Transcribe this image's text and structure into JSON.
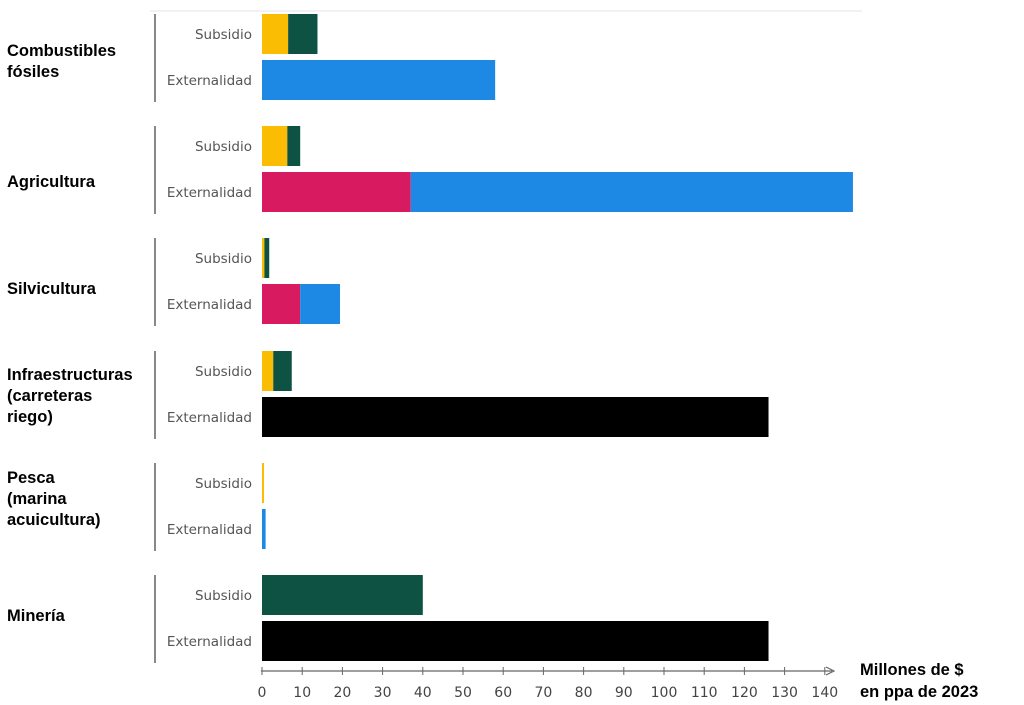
{
  "chart_data": {
    "type": "bar",
    "orientation": "horizontal",
    "stacked": true,
    "x_unit_label": "Millones de $\nen ppa de 2023",
    "xlim": [
      0,
      145
    ],
    "x_ticks": [
      "0",
      "10",
      "20",
      "30",
      "40",
      "50",
      "60",
      "70",
      "80",
      "90",
      "100",
      "110",
      "120",
      "130",
      "140"
    ],
    "row_labels": {
      "subsidy": "Subsidio",
      "externality": "Externalidad"
    },
    "grid": false,
    "legend": "none",
    "groups": [
      {
        "name": "Combustibles\nfósiles",
        "subsidy": [
          {
            "color": "#FBBC04",
            "value": 6.5
          },
          {
            "color": "#0D5242",
            "value": 7.3
          }
        ],
        "externality": [
          {
            "color": "#1E88E5",
            "value": 58
          }
        ]
      },
      {
        "name": "Agricultura",
        "subsidy": [
          {
            "color": "#FBBC04",
            "value": 6.3
          },
          {
            "color": "#0D5242",
            "value": 3.2
          }
        ],
        "externality": [
          {
            "color": "#D81B60",
            "value": 37
          },
          {
            "color": "#1E88E5",
            "value": 110
          }
        ]
      },
      {
        "name": "Silvicultura",
        "subsidy": [
          {
            "color": "#FBBC04",
            "value": 0.6
          },
          {
            "color": "#0D5242",
            "value": 1.2
          }
        ],
        "externality": [
          {
            "color": "#D81B60",
            "value": 9.5
          },
          {
            "color": "#1E88E5",
            "value": 9.9
          }
        ]
      },
      {
        "name": "Infraestructuras\n(carreteras\nriego)",
        "subsidy": [
          {
            "color": "#FBBC04",
            "value": 2.8
          },
          {
            "color": "#0D5242",
            "value": 4.6
          }
        ],
        "externality": [
          {
            "color": "#000000",
            "value": 126
          }
        ]
      },
      {
        "name": "Pesca\n(marina\nacuicultura)",
        "subsidy": [
          {
            "color": "#FBBC04",
            "value": 0.5
          }
        ],
        "externality": [
          {
            "color": "#1E88E5",
            "value": 0.9
          }
        ]
      },
      {
        "name": "Minería",
        "subsidy": [
          {
            "color": "#0D5242",
            "value": 40
          }
        ],
        "externality": [
          {
            "color": "#000000",
            "value": 126
          }
        ]
      }
    ]
  }
}
